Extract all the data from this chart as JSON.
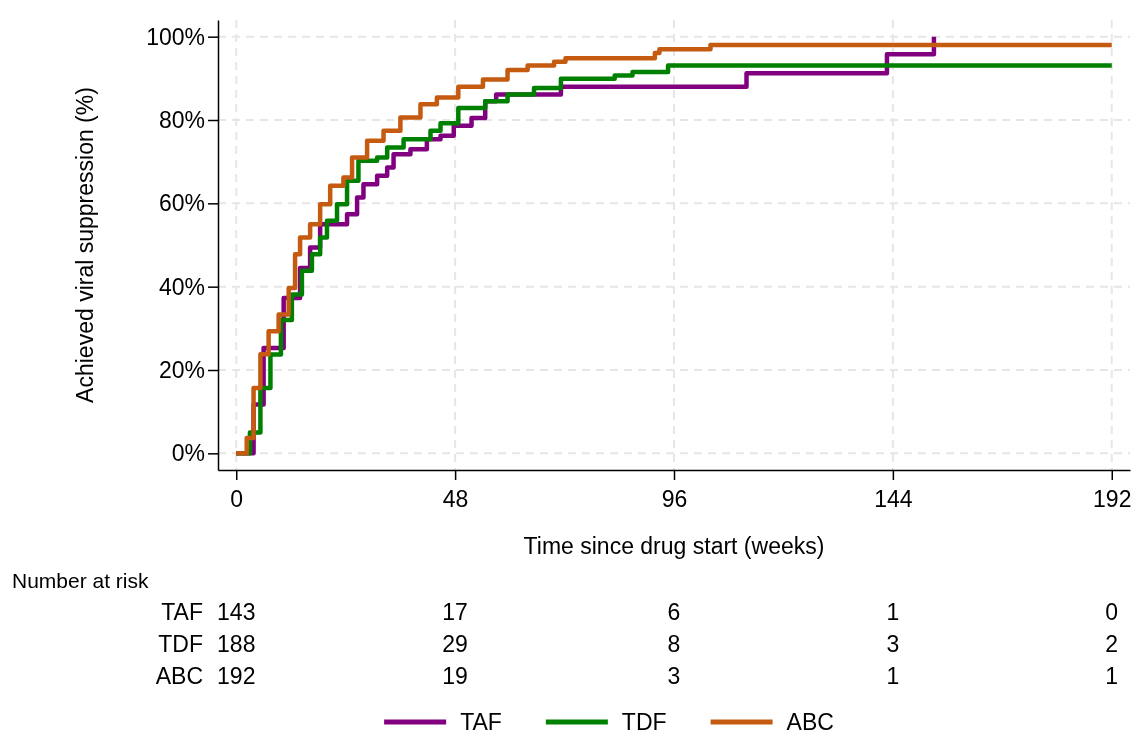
{
  "chart_data": {
    "type": "step",
    "xlabel": "Time since drug start (weeks)",
    "ylabel": "Achieved viral suppression (%)",
    "xlim": [
      -4,
      196
    ],
    "xticks": [
      0,
      48,
      96,
      144,
      192
    ],
    "ylim": [
      -4,
      104
    ],
    "yticks": [
      {
        "value": 0,
        "label": "0%"
      },
      {
        "value": 20,
        "label": "20%"
      },
      {
        "value": 40,
        "label": "40%"
      },
      {
        "value": 60,
        "label": "60%"
      },
      {
        "value": 80,
        "label": "80%"
      },
      {
        "value": 100,
        "label": "100%"
      }
    ],
    "grid": true,
    "legend": "bottom",
    "line_style": "solid",
    "marker": "none",
    "series": [
      {
        "name": "TAF",
        "color": "#800080",
        "x": [
          0,
          1.5,
          3.8,
          6,
          10.4,
          14,
          16.2,
          18.4,
          24.3,
          26.5,
          27.9,
          30.9,
          33.1,
          34.5,
          38.2,
          41.8,
          44.8,
          47.7,
          51.6,
          54.6,
          57,
          71.2,
          111.9,
          142.7,
          153
        ],
        "values": [
          0,
          0,
          11.7,
          25.3,
          37.3,
          44.5,
          49.4,
          55,
          57.4,
          61.4,
          64.6,
          66.6,
          68.6,
          71.8,
          73,
          75.4,
          76.2,
          78.6,
          80.5,
          84.5,
          86.1,
          88,
          91.2,
          95.8,
          100
        ]
      },
      {
        "name": "TDF",
        "color": "#008000",
        "x": [
          0,
          1.5,
          3,
          5.3,
          7.5,
          9.8,
          12.2,
          14.4,
          16.6,
          18.4,
          19.9,
          22.1,
          24.3,
          26.8,
          30.9,
          33.1,
          36.7,
          42.6,
          44.8,
          48.7,
          54.6,
          59.5,
          65.3,
          71.2,
          83,
          86.9,
          94.7,
          192
        ],
        "values": [
          0,
          0,
          5,
          15.7,
          23.7,
          32,
          38.1,
          43.8,
          47.8,
          51.8,
          55.8,
          59.8,
          65.4,
          70.2,
          71,
          73.4,
          75.4,
          77.4,
          79.2,
          82.9,
          84.5,
          86.1,
          87.7,
          89.9,
          90.7,
          91.5,
          93.1,
          93.1
        ]
      },
      {
        "name": "ABC",
        "color": "#c55a11",
        "x": [
          0,
          1.2,
          2.3,
          3.8,
          5.3,
          7.1,
          9.3,
          11.5,
          12.9,
          14,
          16.2,
          18.4,
          20.6,
          23.5,
          25.4,
          28.7,
          32.3,
          36,
          40.4,
          44,
          48.7,
          54.1,
          59.5,
          63.9,
          69.7,
          72.2,
          91.8,
          92.8,
          104,
          192
        ],
        "values": [
          0,
          0,
          3.7,
          15.7,
          23.8,
          29.3,
          33.3,
          39.7,
          47.8,
          51.8,
          55,
          59.8,
          64.2,
          66.2,
          71,
          75,
          77.4,
          80.6,
          83.8,
          85.4,
          88,
          89.7,
          92,
          93.1,
          94,
          94.8,
          96.1,
          97,
          98,
          98
        ]
      }
    ],
    "annotations": [
      "Number at risk",
      "TAF",
      "143",
      "17",
      "6",
      "1",
      "0",
      "TDF",
      "188",
      "29",
      "8",
      "3",
      "2",
      "ABC",
      "192",
      "19",
      "3",
      "1",
      "1"
    ]
  }
}
